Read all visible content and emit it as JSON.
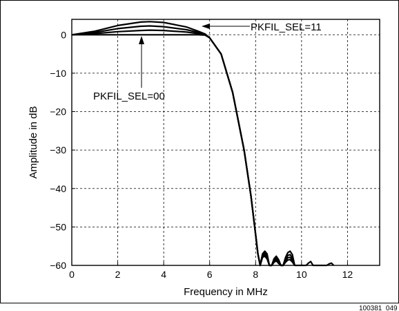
{
  "chart_data": {
    "type": "line",
    "xlabel": "Frequency in MHz",
    "ylabel": "Amplitude in dB",
    "xlim": [
      0,
      13.4
    ],
    "ylim": [
      -60,
      4
    ],
    "xticks": [
      0,
      2,
      4,
      6,
      8,
      10,
      12
    ],
    "yticks": [
      0,
      -10,
      -20,
      -30,
      -40,
      -50,
      -60
    ],
    "grid": true,
    "series": [
      {
        "x": [
          0,
          1,
          2,
          3,
          3.4,
          4,
          5,
          5.5,
          5.8,
          6,
          6.5,
          7,
          7.5,
          7.8,
          8.0,
          8.1,
          8.2,
          8.3,
          8.4,
          8.5,
          8.6,
          8.7,
          8.8,
          8.9,
          9.0,
          9.1,
          9.2,
          9.3,
          9.4,
          9.5,
          9.6,
          9.7,
          9.8,
          9.9,
          10.2,
          10.3,
          10.4,
          10.5,
          11.1,
          11.2,
          11.3,
          11.4
        ],
        "y": [
          0,
          0.9,
          2.4,
          3.3,
          3.4,
          3.2,
          2.0,
          0.9,
          0.2,
          -0.8,
          -5,
          -15,
          -30,
          -42,
          -52,
          -57,
          -60,
          -57,
          -56.3,
          -57,
          -60,
          -60,
          -58.3,
          -57.6,
          -58.5,
          -60,
          -60,
          -58.0,
          -56.7,
          -56.3,
          -57.2,
          -60,
          -60,
          -60,
          -60,
          -59.4,
          -59.0,
          -60,
          -60,
          -59.6,
          -59.4,
          -60
        ]
      },
      {
        "x": [
          0,
          1,
          2,
          3,
          3.4,
          4,
          5,
          5.5,
          5.8,
          6,
          6.5,
          7,
          7.5,
          7.8,
          8.0,
          8.1,
          8.2,
          8.3,
          8.4,
          8.5,
          8.6,
          8.7,
          8.8,
          8.9,
          9.0,
          9.1,
          9.2,
          9.3,
          9.4,
          9.5,
          9.6,
          9.7
        ],
        "y": [
          0,
          0.6,
          1.6,
          2.2,
          2.3,
          2.1,
          1.3,
          0.6,
          0.1,
          -0.8,
          -5,
          -15,
          -30,
          -42,
          -52,
          -57,
          -60,
          -57.3,
          -56.8,
          -57.5,
          -60,
          -60,
          -58.6,
          -58.0,
          -58.9,
          -60,
          -60,
          -58.4,
          -57.4,
          -57.2,
          -58.0,
          -60
        ]
      },
      {
        "x": [
          0,
          1,
          2,
          3,
          3.4,
          4,
          5,
          5.5,
          5.8,
          6,
          6.5,
          7,
          7.5,
          7.8,
          8.0,
          8.1,
          8.2,
          8.3,
          8.4,
          8.5,
          8.6,
          8.7,
          8.8,
          8.9,
          9.0,
          9.1,
          9.2,
          9.3,
          9.4,
          9.5,
          9.6,
          9.7
        ],
        "y": [
          0,
          0.3,
          0.8,
          1.1,
          1.2,
          1.1,
          0.7,
          0.3,
          0.0,
          -0.8,
          -5,
          -15,
          -30,
          -42,
          -52,
          -57,
          -60,
          -57.6,
          -57.2,
          -57.9,
          -60,
          -60,
          -58.9,
          -58.4,
          -59.2,
          -60,
          -60,
          -58.8,
          -58.0,
          -57.9,
          -58.6,
          -60
        ]
      },
      {
        "x": [
          0,
          1,
          2,
          3,
          3.4,
          4,
          5,
          5.5,
          5.8,
          6,
          6.5,
          7,
          7.5,
          7.8,
          8.0,
          8.1,
          8.2,
          8.3,
          8.4,
          8.5,
          8.6,
          8.7,
          8.8,
          8.9,
          9.0,
          9.1,
          9.2,
          9.3,
          9.4,
          9.5,
          9.6,
          9.7
        ],
        "y": [
          0,
          0,
          0,
          0,
          0,
          0,
          0,
          0,
          -0.1,
          -0.8,
          -5,
          -15,
          -30,
          -42,
          -52,
          -57,
          -60,
          -57.9,
          -57.6,
          -58.3,
          -60,
          -60,
          -59.2,
          -58.8,
          -59.5,
          -60,
          -60,
          -59.2,
          -58.6,
          -58.5,
          -59.1,
          -60
        ]
      }
    ],
    "annotations": [
      {
        "text": "PKFIL_SEL=11",
        "x": 6.05,
        "y": 0.2
      },
      {
        "text": "PKFIL_SEL=00",
        "x": 3.05,
        "y": 0
      }
    ]
  },
  "figure_id": "100381_049"
}
